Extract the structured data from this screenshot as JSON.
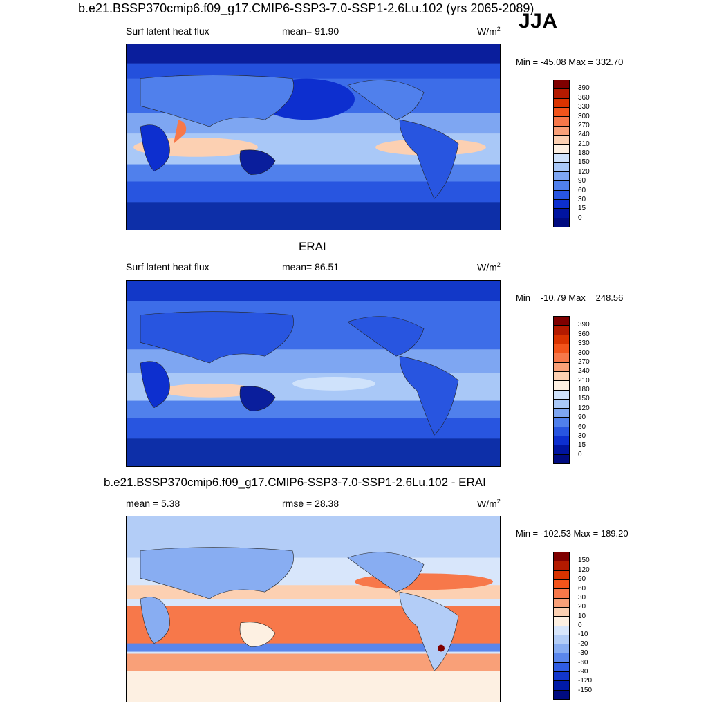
{
  "header": {
    "title": "b.e21.BSSP370cmip6.f09_g17.CMIP6-SSP3-7.0-SSP1-2.6Lu.102 (yrs 2065-2089)",
    "season": "JJA"
  },
  "panels": [
    {
      "subtitle": "",
      "left_label": "Surf latent heat flux",
      "center_label": "mean=  91.90",
      "units": "W/m",
      "units_exp": "2",
      "minmax": "Min = -45.08 Max = 332.70"
    },
    {
      "subtitle": "ERAI",
      "left_label": "Surf latent heat flux",
      "center_label": "mean=  86.51",
      "units": "W/m",
      "units_exp": "2",
      "minmax": "Min = -10.79 Max = 248.56"
    },
    {
      "subtitle": "b.e21.BSSP370cmip6.f09_g17.CMIP6-SSP3-7.0-SSP1-2.6Lu.102 - ERAI",
      "left_label": "mean =   5.38",
      "center_label": "rmse =  28.38",
      "units": "W/m",
      "units_exp": "2",
      "minmax": "Min = -102.53 Max = 189.20"
    }
  ],
  "colorbars": {
    "field": {
      "labels": [
        "390",
        "360",
        "330",
        "300",
        "270",
        "240",
        "210",
        "180",
        "150",
        "120",
        "90",
        "60",
        "30",
        "15",
        "0"
      ],
      "colors": [
        "#7f0000",
        "#b31a00",
        "#d93300",
        "#f2541b",
        "#f7784a",
        "#f9a078",
        "#fcd0b2",
        "#fdf0e2",
        "#cfe2fb",
        "#a9c8f7",
        "#7ea6f2",
        "#5080ec",
        "#2855e0",
        "#0d2fcf",
        "#0014a0",
        "#000b80"
      ]
    },
    "diff": {
      "labels": [
        "150",
        "120",
        "90",
        "60",
        "30",
        "20",
        "10",
        "0",
        "-10",
        "-20",
        "-30",
        "-60",
        "-90",
        "-120",
        "-150"
      ],
      "colors": [
        "#7f0000",
        "#b31a00",
        "#d93300",
        "#f2541b",
        "#f7784a",
        "#f9a078",
        "#fcd0b2",
        "#fdf0e2",
        "#d8e6fb",
        "#b3cdf7",
        "#88adf2",
        "#5a86ec",
        "#2f5ce2",
        "#1236cc",
        "#001aa6",
        "#000b80"
      ]
    }
  }
}
